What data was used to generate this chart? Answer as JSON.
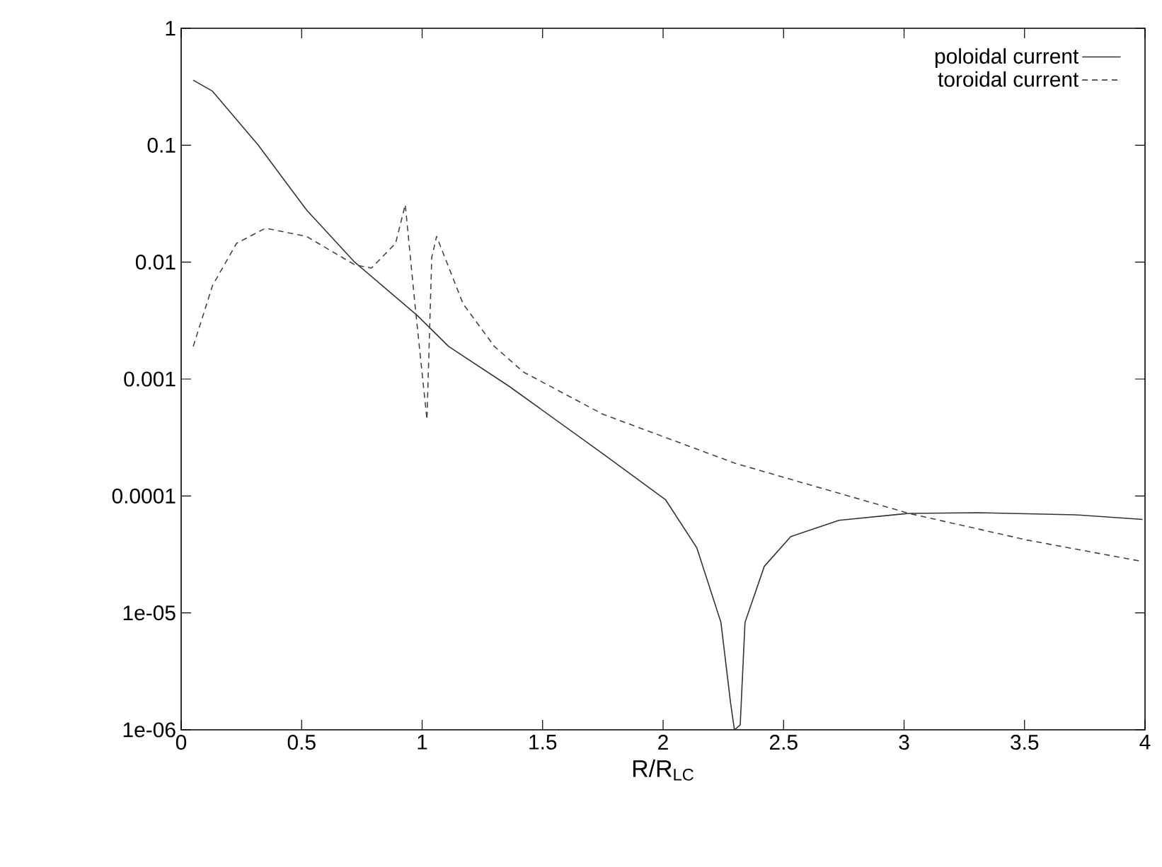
{
  "chart_data": {
    "type": "line",
    "xlabel": "R/R$_{LC}$",
    "log": "y",
    "legend": "top right",
    "xlim": [
      0,
      4
    ],
    "ylim": [
      1e-06,
      1
    ],
    "xticks": [
      0,
      0.5,
      1,
      1.5,
      2,
      2.5,
      3,
      3.5,
      4
    ],
    "yticks": [
      {
        "value": 1,
        "label": "1"
      },
      {
        "value": 0.1,
        "label": "0.1"
      },
      {
        "value": 0.01,
        "label": "0.01"
      },
      {
        "value": 0.001,
        "label": "0.001"
      },
      {
        "value": 0.0001,
        "label": "0.0001"
      },
      {
        "value": 1e-05,
        "label": "1e-05"
      },
      {
        "value": 1e-06,
        "label": "1e-06"
      }
    ],
    "series": [
      {
        "name": "poloidal current",
        "color": "#333333",
        "line_style": "solid",
        "x": [
          0.05,
          0.13,
          0.32,
          0.52,
          0.72,
          0.98,
          1.11,
          1.36,
          1.75,
          2.01,
          2.14,
          2.24,
          2.28,
          2.296,
          2.32,
          2.34,
          2.42,
          2.53,
          2.73,
          3.02,
          3.31,
          3.71,
          3.99
        ],
        "values": [
          0.36,
          0.29,
          0.1,
          0.028,
          0.01,
          0.0035,
          0.0019,
          0.00087,
          0.00023,
          9.3e-05,
          3.6e-05,
          8.3e-06,
          1.7e-06,
          1e-06,
          1.1e-06,
          8.3e-06,
          2.5e-05,
          4.5e-05,
          6.2e-05,
          7.1e-05,
          7.2e-05,
          6.9e-05,
          6.3e-05
        ]
      },
      {
        "name": "toroidal current",
        "color": "#444444",
        "line_style": "dashed",
        "x": [
          0.05,
          0.13,
          0.23,
          0.35,
          0.52,
          0.72,
          0.79,
          0.89,
          0.93,
          0.97,
          1.02,
          1.04,
          1.06,
          1.17,
          1.3,
          1.42,
          1.75,
          2.3,
          3.02,
          3.51,
          3.99
        ],
        "values": [
          0.0019,
          0.0063,
          0.0145,
          0.0195,
          0.0166,
          0.0095,
          0.0089,
          0.0145,
          0.031,
          0.0044,
          0.00045,
          0.011,
          0.0166,
          0.0044,
          0.0019,
          0.00115,
          0.0005,
          0.00019,
          7.1e-05,
          4.2e-05,
          2.75e-05
        ]
      }
    ]
  }
}
